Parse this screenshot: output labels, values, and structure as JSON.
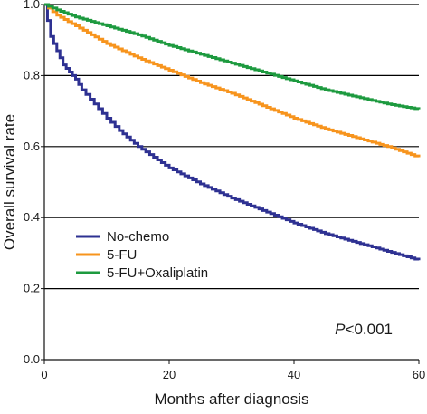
{
  "chart_data": {
    "type": "line",
    "subtype": "kaplan-meier-step",
    "xlabel": "Months after diagnosis",
    "ylabel": "Overall survival rate",
    "xlim": [
      0,
      60
    ],
    "ylim": [
      0,
      1.0
    ],
    "xticks": [
      0,
      20,
      40,
      60
    ],
    "xtick_labels": [
      "0",
      "20",
      "40",
      "60"
    ],
    "yticks": [
      0.0,
      0.2,
      0.4,
      0.6,
      0.8,
      1.0
    ],
    "ytick_labels": [
      "0.0",
      "0.2",
      "0.4",
      "0.6",
      "0.8",
      "1.0"
    ],
    "grid": "horizontal",
    "legend_position": "lower-left",
    "annotation": {
      "italic": "P",
      "rest": "<0.001"
    },
    "series": [
      {
        "name": "No-chemo",
        "color": "#2e3192",
        "x": [
          0,
          1,
          2,
          3,
          4,
          5,
          6,
          8,
          10,
          12,
          15,
          20,
          25,
          30,
          35,
          40,
          45,
          50,
          55,
          60
        ],
        "y": [
          1.0,
          0.91,
          0.87,
          0.83,
          0.81,
          0.79,
          0.76,
          0.72,
          0.68,
          0.645,
          0.6,
          0.54,
          0.495,
          0.455,
          0.42,
          0.385,
          0.355,
          0.33,
          0.305,
          0.28
        ]
      },
      {
        "name": "5-FU",
        "color": "#f7941d",
        "x": [
          0,
          2,
          5,
          10,
          15,
          20,
          25,
          30,
          35,
          40,
          45,
          50,
          55,
          60
        ],
        "y": [
          1.0,
          0.97,
          0.94,
          0.89,
          0.85,
          0.815,
          0.78,
          0.75,
          0.715,
          0.68,
          0.65,
          0.625,
          0.6,
          0.57
        ]
      },
      {
        "name": "5-FU+Oxaliplatin",
        "color": "#1d9a3f",
        "x": [
          0,
          2,
          5,
          10,
          15,
          20,
          25,
          30,
          35,
          40,
          45,
          50,
          55,
          60
        ],
        "y": [
          1.0,
          0.985,
          0.965,
          0.94,
          0.915,
          0.885,
          0.86,
          0.835,
          0.81,
          0.785,
          0.76,
          0.74,
          0.72,
          0.705
        ]
      }
    ]
  }
}
